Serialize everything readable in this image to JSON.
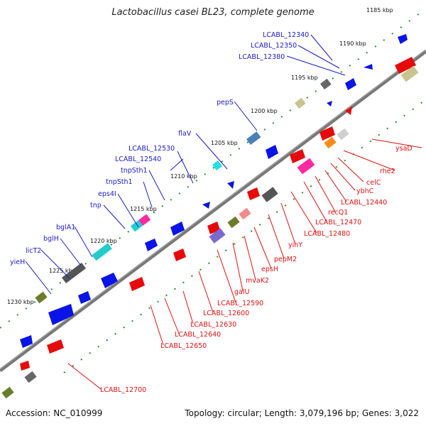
{
  "title": "Lactobacillus casei BL23, complete genome",
  "footer": {
    "accession": "Accession: NC_010999",
    "summary": "Topology: circular; Length: 3,079,196 bp; Genes: 3,022"
  },
  "ticks": [
    "1185 kbp",
    "1190 kbp",
    "1195 kbp",
    "1200 kbp",
    "1205 kbp",
    "1210 kbp",
    "1215 kbp",
    "1220 kbp",
    "1225 kbp",
    "1230 kbp"
  ],
  "upper_labels": [
    "LCABL_12340",
    "LCABL_12350",
    "LCABL_12380",
    "pepS",
    "flaV",
    "LCABL_12530",
    "LCABL_12540",
    "tnpSth1",
    "tnpSth1",
    "eps4I",
    "tnp",
    "bglA1",
    "bglH",
    "licT2",
    "yieH"
  ],
  "lower_labels": [
    "ysaD",
    "rhe2",
    "celC",
    "ybhC",
    "LCABL_12440",
    "recQ1",
    "LCABL_12470",
    "LCABL_12480",
    "yihY",
    "pepM2",
    "epsH",
    "mvaK2",
    "galU",
    "LCABL_12590",
    "LCABL_12600",
    "LCABL_12630",
    "LCABL_12640",
    "LCABL_12650",
    "LCABL_12700"
  ],
  "colors": {
    "upper_label": "#1a1acc",
    "lower_label": "#e01010",
    "forward_gene": "#0a14e6",
    "reverse_gene": "#e60a0a",
    "backbone": "#777777",
    "tick_dots": "#2a8a2a"
  }
}
